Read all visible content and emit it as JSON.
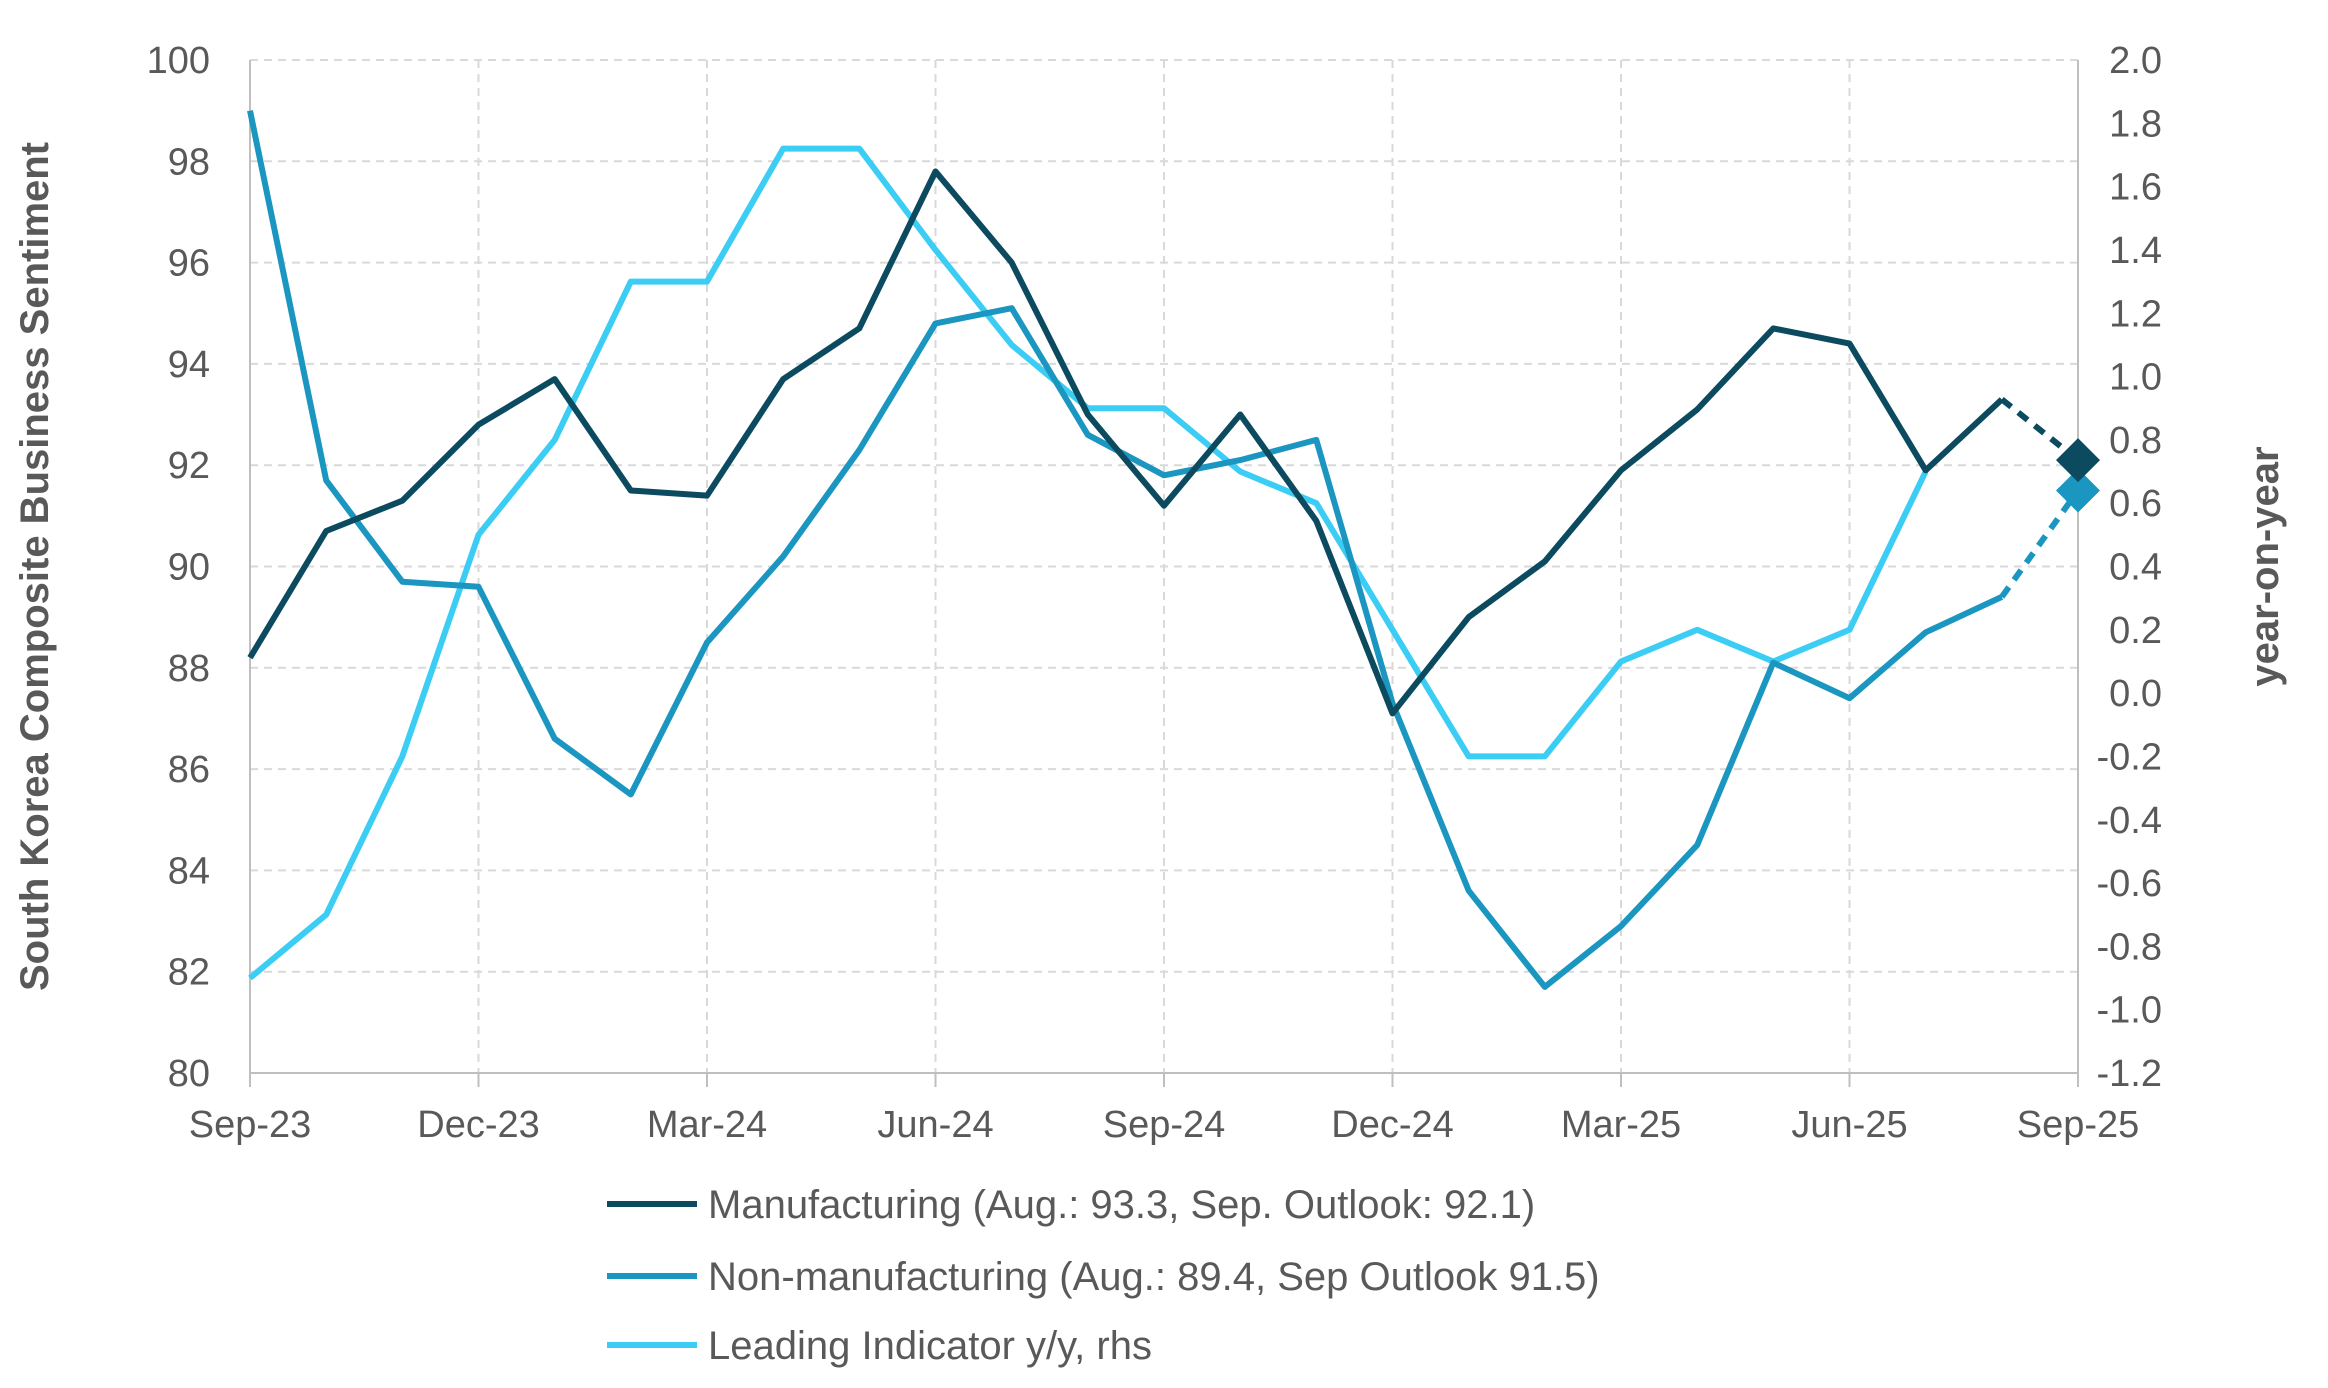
{
  "chart_data": {
    "type": "line",
    "x": [
      "Sep-23",
      "Oct-23",
      "Nov-23",
      "Dec-23",
      "Jan-24",
      "Feb-24",
      "Mar-24",
      "Apr-24",
      "May-24",
      "Jun-24",
      "Jul-24",
      "Aug-24",
      "Sep-24",
      "Oct-24",
      "Nov-24",
      "Dec-24",
      "Jan-25",
      "Feb-25",
      "Mar-25",
      "Apr-25",
      "May-25",
      "Jun-25",
      "Jul-25",
      "Aug-25",
      "Sep-25"
    ],
    "x_tick_labels": [
      "Sep-23",
      "Dec-23",
      "Mar-24",
      "Jun-24",
      "Sep-24",
      "Dec-24",
      "Mar-25",
      "Jun-25",
      "Sep-25"
    ],
    "ylabel": "South Korea Composite Business Sentiment",
    "ylabel_right": "year-on-year",
    "ylim": [
      80,
      100
    ],
    "yticks": [
      "80",
      "82",
      "84",
      "86",
      "88",
      "90",
      "92",
      "94",
      "96",
      "98",
      "100"
    ],
    "ylim_right": [
      -1.2,
      2.0
    ],
    "yticks_right": [
      "-1.2",
      "-1.0",
      "-0.8",
      "-0.6",
      "-0.4",
      "-0.2",
      "0.0",
      "0.2",
      "0.4",
      "0.6",
      "0.8",
      "1.0",
      "1.2",
      "1.4",
      "1.6",
      "1.8",
      "2.0"
    ],
    "grid": true,
    "legend_position": "bottom",
    "series": [
      {
        "name": "Manufacturing (Aug.: 93.3, Sep. Outlook: 92.1)",
        "axis": "left",
        "color": "#0b4a5f",
        "values": [
          88.2,
          90.7,
          91.3,
          92.8,
          93.7,
          91.5,
          91.4,
          93.7,
          94.7,
          97.8,
          96.0,
          93.0,
          91.2,
          93.0,
          90.9,
          87.1,
          89.0,
          90.1,
          91.9,
          93.1,
          94.7,
          94.4,
          91.9,
          93.3,
          null
        ],
        "outlook": {
          "from": "Aug-25",
          "to": "Sep-25",
          "value": 92.1
        }
      },
      {
        "name": "Non-manufacturing (Aug.: 89.4, Sep Outlook 91.5)",
        "axis": "left",
        "color": "#1a96c0",
        "values": [
          99.0,
          91.7,
          89.7,
          89.6,
          86.6,
          85.5,
          88.5,
          90.2,
          92.3,
          94.8,
          95.1,
          92.6,
          91.8,
          92.1,
          92.5,
          87.3,
          83.6,
          81.7,
          82.9,
          84.5,
          88.1,
          87.4,
          88.7,
          89.4,
          null
        ],
        "outlook": {
          "from": "Aug-25",
          "to": "Sep-25",
          "value": 91.5
        }
      },
      {
        "name": "Leading Indicator y/y, rhs",
        "axis": "right",
        "color": "#3ccdf5",
        "values": [
          -0.9,
          -0.7,
          -0.2,
          0.5,
          0.8,
          1.3,
          1.3,
          1.72,
          1.72,
          1.4,
          1.1,
          0.9,
          0.9,
          0.7,
          0.6,
          0.2,
          -0.2,
          -0.2,
          0.1,
          0.2,
          0.1,
          0.2,
          0.7,
          null,
          null
        ]
      }
    ]
  }
}
